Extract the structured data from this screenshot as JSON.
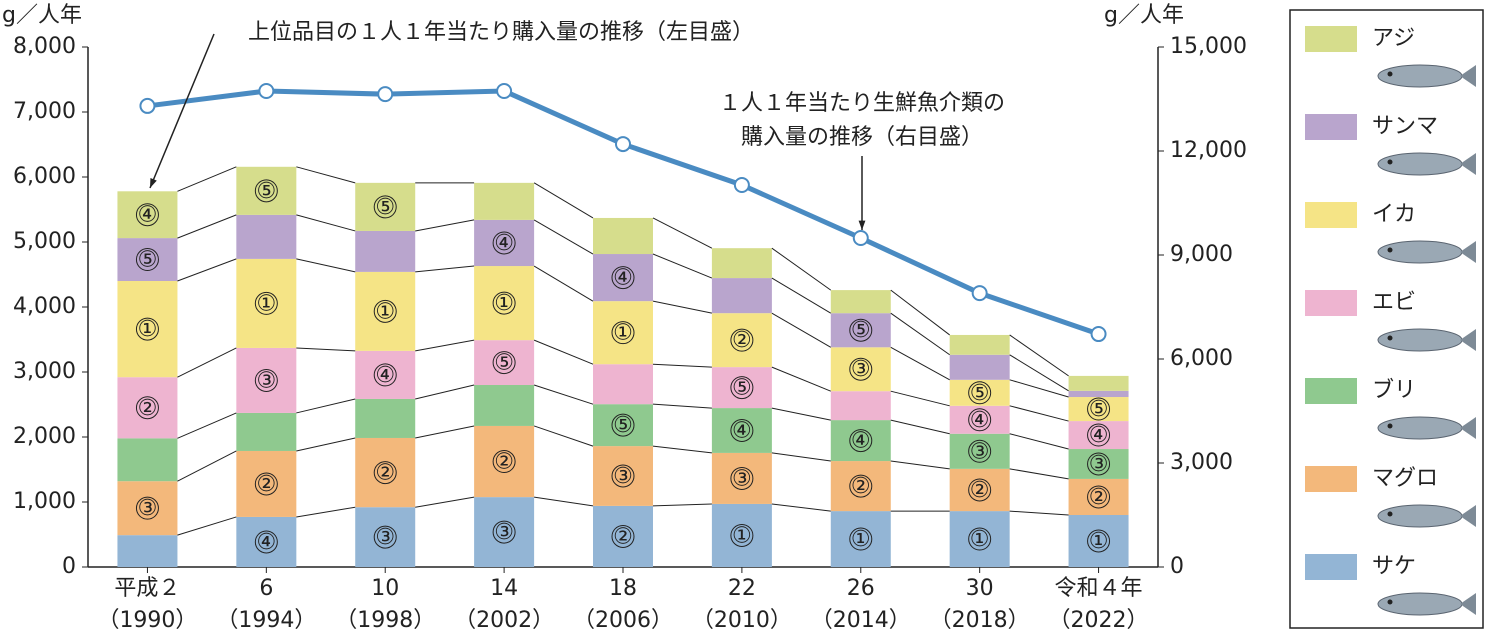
{
  "chart_data": {
    "type": "stacked-bar-line",
    "y_label": "g／人年",
    "y2_label": "g／人年",
    "annotations": [
      "上位品目の１人１年当たり購入量の推移（左目盛）",
      "１人１年当たり生鮮魚介類の",
      "購入量の推移（右目盛）"
    ],
    "categories": [
      "平成２",
      "6",
      "10",
      "14",
      "18",
      "22",
      "26",
      "30",
      "令和４年"
    ],
    "category_years": [
      "（1990）",
      "（1994）",
      "（1998）",
      "（2002）",
      "（2006）",
      "（2010）",
      "（2014）",
      "（2018）",
      "（2022）"
    ],
    "ylim": [
      0,
      8000
    ],
    "yticks": [
      0,
      {
        "value": 1000,
        "label": "1,000"
      },
      {
        "value": 2000,
        "label": "2,000"
      },
      {
        "value": 3000,
        "label": "3,000"
      },
      {
        "value": 4000,
        "label": "4,000"
      },
      {
        "value": 5000,
        "label": "5,000"
      },
      {
        "value": 6000,
        "label": "6,000"
      },
      {
        "value": 7000,
        "label": "7,000"
      },
      {
        "value": 8000,
        "label": "8,000"
      }
    ],
    "y2lim": [
      0,
      15000
    ],
    "y2ticks": [
      0,
      {
        "value": 3000,
        "label": "3,000"
      },
      {
        "value": 6000,
        "label": "6,000"
      },
      {
        "value": 9000,
        "label": "9,000"
      },
      {
        "value": 12000,
        "label": "12,000"
      },
      {
        "value": 15000,
        "label": "15,000"
      }
    ],
    "series": [
      {
        "name": "サケ",
        "color": "#93b5d5",
        "values": [
          490,
          770,
          920,
          1075,
          940,
          970,
          860,
          860,
          800
        ],
        "labels": [
          null,
          "④",
          "③",
          "③",
          "②",
          "①",
          "①",
          "①",
          "①"
        ]
      },
      {
        "name": "マグロ",
        "color": "#f3b87b",
        "values": [
          830,
          1015,
          1065,
          1095,
          920,
          785,
          770,
          650,
          555
        ],
        "labels": [
          "③",
          "②",
          "②",
          "②",
          "③",
          "③",
          "②",
          "②",
          "②"
        ]
      },
      {
        "name": "ブリ",
        "color": "#8fc98f",
        "values": [
          660,
          585,
          600,
          630,
          645,
          690,
          630,
          540,
          460
        ],
        "labels": [
          null,
          null,
          null,
          null,
          "⑤",
          "④",
          "④",
          "③",
          "③"
        ]
      },
      {
        "name": "エビ",
        "color": "#eeb4d0",
        "values": [
          940,
          1000,
          740,
          690,
          615,
          630,
          445,
          430,
          430
        ],
        "labels": [
          "②",
          "③",
          "④",
          "⑤",
          null,
          "⑤",
          null,
          "④",
          "④"
        ]
      },
      {
        "name": "イカ",
        "color": "#f5e486",
        "values": [
          1480,
          1370,
          1215,
          1140,
          970,
          830,
          675,
          400,
          370
        ],
        "labels": [
          "①",
          "①",
          "①",
          "①",
          "①",
          "②",
          "③",
          "⑤",
          "⑤"
        ]
      },
      {
        "name": "サンマ",
        "color": "#b9a5cd",
        "values": [
          660,
          677,
          630,
          710,
          725,
          540,
          525,
          385,
          95
        ],
        "labels": [
          "⑤",
          null,
          null,
          "④",
          "④",
          null,
          "⑤",
          null,
          null
        ]
      },
      {
        "name": "アジ",
        "color": "#d6dd8c",
        "values": [
          720,
          740,
          740,
          570,
          555,
          460,
          355,
          305,
          230
        ],
        "labels": [
          "④",
          "⑤",
          "⑤",
          null,
          null,
          null,
          null,
          null,
          null
        ]
      }
    ],
    "line": {
      "axis": "y2",
      "color": "#4a8bc2",
      "values": [
        13300,
        13730,
        13640,
        13730,
        12200,
        11020,
        9490,
        7900,
        6720
      ]
    }
  }
}
